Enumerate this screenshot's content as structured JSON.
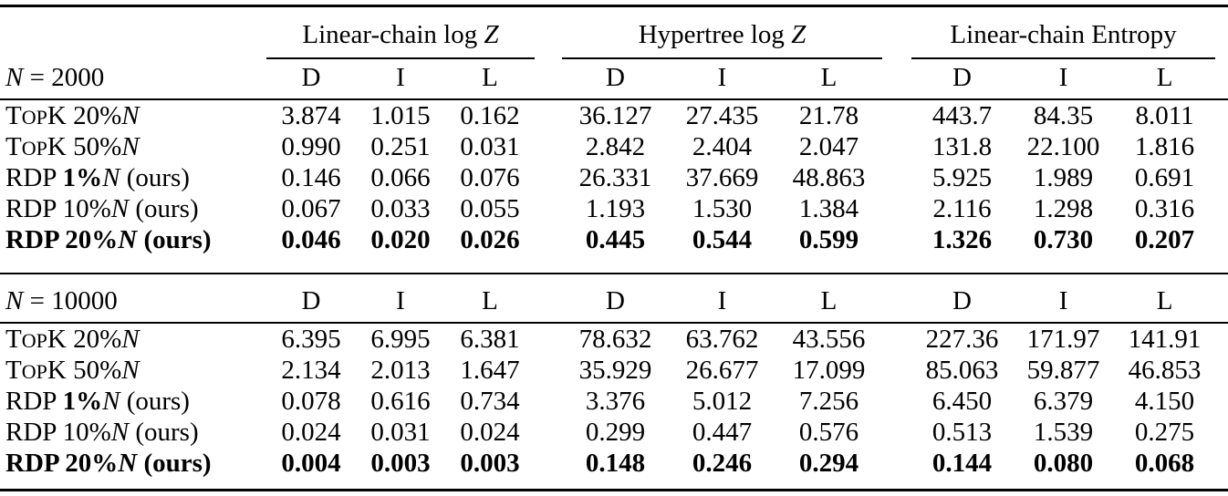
{
  "page": {
    "background_color": "#ffffff",
    "text_color": "#000000",
    "rule_color": "#000000"
  },
  "table": {
    "subcolumns": [
      "D",
      "I",
      "L"
    ],
    "groups": [
      {
        "title": [
          {
            "text": "Linear-chain log "
          },
          {
            "text": "Z",
            "style": "italic"
          }
        ]
      },
      {
        "title": [
          {
            "text": "Hypertree log "
          },
          {
            "text": "Z",
            "style": "italic"
          }
        ]
      },
      {
        "title": [
          {
            "text": "Linear-chain Entropy"
          }
        ]
      }
    ],
    "sections": [
      {
        "header": [
          {
            "text": "N",
            "style": "italic"
          },
          {
            "text": " = 2000"
          }
        ],
        "rows": [
          {
            "label": [
              {
                "text": "T"
              },
              {
                "text": "OP",
                "style": "smallcaps"
              },
              {
                "text": "K 20%"
              },
              {
                "text": "N",
                "style": "italic"
              }
            ],
            "bold": false,
            "values": [
              "3.874",
              "1.015",
              "0.162",
              "36.127",
              "27.435",
              "21.78",
              "443.7",
              "84.35",
              "8.011"
            ]
          },
          {
            "label": [
              {
                "text": "T"
              },
              {
                "text": "OP",
                "style": "smallcaps"
              },
              {
                "text": "K 50%"
              },
              {
                "text": "N",
                "style": "italic"
              }
            ],
            "bold": false,
            "values": [
              "0.990",
              "0.251",
              "0.031",
              "2.842",
              "2.404",
              "2.047",
              "131.8",
              "22.100",
              "1.816"
            ]
          },
          {
            "label": [
              {
                "text": "RDP "
              },
              {
                "text": "1%",
                "style": "bold"
              },
              {
                "text": "N",
                "style": "italic"
              },
              {
                "text": " (ours)"
              }
            ],
            "bold": false,
            "values": [
              "0.146",
              "0.066",
              "0.076",
              "26.331",
              "37.669",
              "48.863",
              "5.925",
              "1.989",
              "0.691"
            ]
          },
          {
            "label": [
              {
                "text": "RDP 10%"
              },
              {
                "text": "N",
                "style": "italic"
              },
              {
                "text": " (ours)"
              }
            ],
            "bold": false,
            "values": [
              "0.067",
              "0.033",
              "0.055",
              "1.193",
              "1.530",
              "1.384",
              "2.116",
              "1.298",
              "0.316"
            ]
          },
          {
            "label": [
              {
                "text": "RDP 20%"
              },
              {
                "text": "N",
                "style": "italic"
              },
              {
                "text": " (ours)"
              }
            ],
            "bold": true,
            "values": [
              "0.046",
              "0.020",
              "0.026",
              "0.445",
              "0.544",
              "0.599",
              "1.326",
              "0.730",
              "0.207"
            ]
          }
        ]
      },
      {
        "header": [
          {
            "text": "N",
            "style": "italic"
          },
          {
            "text": " = 10000"
          }
        ],
        "rows": [
          {
            "label": [
              {
                "text": "T"
              },
              {
                "text": "OP",
                "style": "smallcaps"
              },
              {
                "text": "K 20%"
              },
              {
                "text": "N",
                "style": "italic"
              }
            ],
            "bold": false,
            "values": [
              "6.395",
              "6.995",
              "6.381",
              "78.632",
              "63.762",
              "43.556",
              "227.36",
              "171.97",
              "141.91"
            ]
          },
          {
            "label": [
              {
                "text": "T"
              },
              {
                "text": "OP",
                "style": "smallcaps"
              },
              {
                "text": "K 50%"
              },
              {
                "text": "N",
                "style": "italic"
              }
            ],
            "bold": false,
            "values": [
              "2.134",
              "2.013",
              "1.647",
              "35.929",
              "26.677",
              "17.099",
              "85.063",
              "59.877",
              "46.853"
            ]
          },
          {
            "label": [
              {
                "text": "RDP "
              },
              {
                "text": "1%",
                "style": "bold"
              },
              {
                "text": "N",
                "style": "italic"
              },
              {
                "text": " (ours)"
              }
            ],
            "bold": false,
            "values": [
              "0.078",
              "0.616",
              "0.734",
              "3.376",
              "5.012",
              "7.256",
              "6.450",
              "6.379",
              "4.150"
            ]
          },
          {
            "label": [
              {
                "text": "RDP 10%"
              },
              {
                "text": "N",
                "style": "italic"
              },
              {
                "text": " (ours)"
              }
            ],
            "bold": false,
            "values": [
              "0.024",
              "0.031",
              "0.024",
              "0.299",
              "0.447",
              "0.576",
              "0.513",
              "1.539",
              "0.275"
            ]
          },
          {
            "label": [
              {
                "text": "RDP 20%"
              },
              {
                "text": "N",
                "style": "italic"
              },
              {
                "text": " (ours)"
              }
            ],
            "bold": true,
            "values": [
              "0.004",
              "0.003",
              "0.003",
              "0.148",
              "0.246",
              "0.294",
              "0.144",
              "0.080",
              "0.068"
            ]
          }
        ]
      }
    ]
  }
}
